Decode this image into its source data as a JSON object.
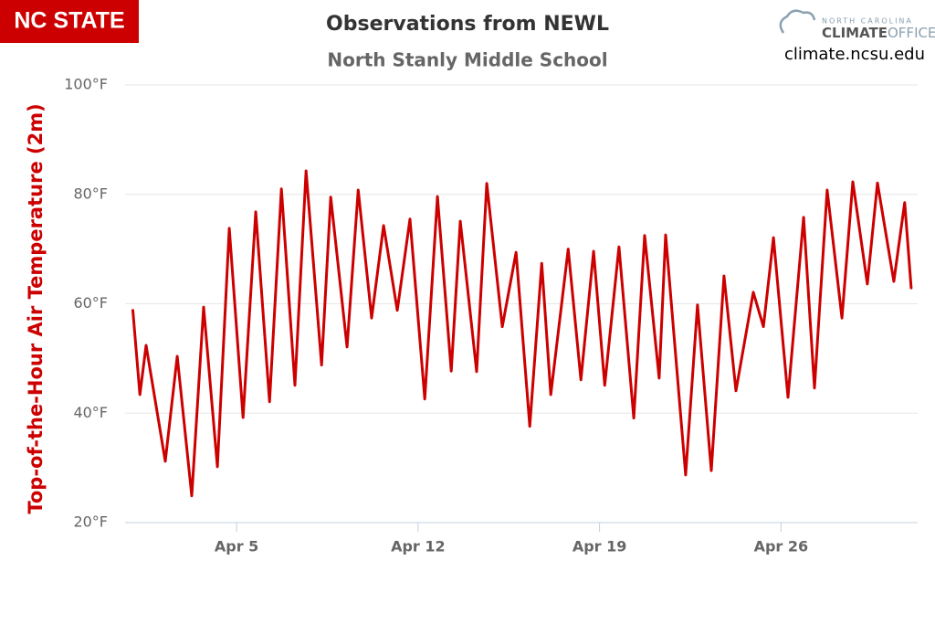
{
  "branding": {
    "logo": "NC STATE",
    "office_top": "NORTH CAROLINA",
    "office_main": "CLIMATE",
    "office_sub": "OFFICE",
    "url": "climate.ncsu.edu"
  },
  "chart_data": {
    "type": "line",
    "title": "Observations from NEWL",
    "subtitle": "North Stanly Middle School",
    "y_label": "Top-of-the-Hour Air Temperature (2m)",
    "color": "#cc0000",
    "x": [
      1.0,
      1.27,
      1.51,
      2.25,
      2.71,
      3.27,
      3.73,
      4.26,
      4.72,
      5.25,
      5.74,
      6.27,
      6.73,
      7.25,
      7.68,
      8.28,
      8.63,
      9.26,
      9.69,
      10.21,
      10.67,
      11.2,
      11.69,
      12.26,
      12.75,
      13.28,
      13.63,
      14.26,
      14.65,
      15.25,
      15.78,
      16.31,
      16.77,
      17.12,
      17.79,
      18.28,
      18.77,
      19.2,
      19.75,
      20.32,
      20.74,
      21.3,
      21.55,
      22.32,
      22.78,
      23.31,
      23.8,
      24.26,
      24.93,
      25.32,
      25.71,
      26.27,
      26.87,
      27.29,
      27.78,
      28.35,
      28.77,
      29.33,
      29.72,
      30.35,
      30.77,
      31.02
    ],
    "values": [
      58.8,
      43.4,
      52.4,
      31.2,
      50.4,
      24.9,
      59.4,
      30.2,
      73.8,
      39.2,
      76.8,
      42.1,
      81,
      45.1,
      84.3,
      48.8,
      79.5,
      52.1,
      80.8,
      57.4,
      74.3,
      58.8,
      75.5,
      42.6,
      79.6,
      47.7,
      75.1,
      47.6,
      82,
      55.8,
      69.4,
      37.6,
      67.4,
      43.4,
      70,
      46.1,
      69.6,
      45.1,
      70.4,
      39.1,
      72.5,
      46.4,
      72.6,
      28.7,
      59.8,
      29.5,
      65.1,
      44.1,
      62.1,
      55.8,
      72.1,
      42.9,
      75.8,
      44.6,
      80.8,
      57.4,
      82.3,
      63.6,
      82.1,
      64.1,
      78.5,
      62.9
    ],
    "xlim": [
      0.7,
      31.27
    ],
    "xticks": [
      {
        "value": 5,
        "label": "Apr 5"
      },
      {
        "value": 12,
        "label": "Apr 12"
      },
      {
        "value": 19,
        "label": "Apr 19"
      },
      {
        "value": 26,
        "label": "Apr 26"
      }
    ],
    "ylim": [
      20,
      100
    ],
    "yticks": [
      {
        "value": 20,
        "label": "20°F"
      },
      {
        "value": 40,
        "label": "40°F"
      },
      {
        "value": 60,
        "label": "60°F"
      },
      {
        "value": 80,
        "label": "80°F"
      },
      {
        "value": 100,
        "label": "100°F"
      }
    ],
    "grid": true
  }
}
